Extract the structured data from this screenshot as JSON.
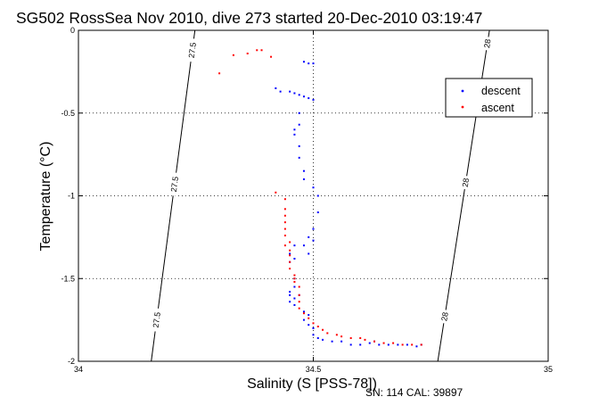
{
  "chart_data": {
    "type": "scatter",
    "title": "SG502 RossSea Nov 2010, dive 273 started 20-Dec-2010 03:19:47",
    "xlabel": "Salinity (S [PSS-78])",
    "ylabel": "Temperature (°C)",
    "footer": "SN: 114  CAL: 39897",
    "xlim": [
      34,
      35
    ],
    "ylim": [
      -2,
      0
    ],
    "xticks": [
      34,
      34.5,
      35
    ],
    "xtick_labels": [
      "34",
      "34.5",
      "35"
    ],
    "yticks": [
      0,
      -0.5,
      -1,
      -1.5,
      -2
    ],
    "ytick_labels": [
      "0",
      "-0.5",
      "-1",
      "-1.5",
      "-2"
    ],
    "grid": true,
    "legend_position": "top-right",
    "series": [
      {
        "name": "descent",
        "color": "#0000ff",
        "points": [
          [
            34.48,
            -0.19
          ],
          [
            34.49,
            -0.2
          ],
          [
            34.5,
            -0.2
          ],
          [
            34.42,
            -0.35
          ],
          [
            34.43,
            -0.37
          ],
          [
            34.45,
            -0.37
          ],
          [
            34.46,
            -0.38
          ],
          [
            34.47,
            -0.39
          ],
          [
            34.48,
            -0.4
          ],
          [
            34.49,
            -0.41
          ],
          [
            34.5,
            -0.42
          ],
          [
            34.47,
            -0.5
          ],
          [
            34.47,
            -0.57
          ],
          [
            34.46,
            -0.6
          ],
          [
            34.46,
            -0.63
          ],
          [
            34.47,
            -0.7
          ],
          [
            34.47,
            -0.77
          ],
          [
            34.48,
            -0.85
          ],
          [
            34.48,
            -0.9
          ],
          [
            34.5,
            -0.95
          ],
          [
            34.51,
            -1.0
          ],
          [
            34.51,
            -1.1
          ],
          [
            34.5,
            -1.2
          ],
          [
            34.49,
            -1.25
          ],
          [
            34.5,
            -1.27
          ],
          [
            34.48,
            -1.3
          ],
          [
            34.49,
            -1.35
          ],
          [
            34.46,
            -1.3
          ],
          [
            34.45,
            -1.35
          ],
          [
            34.46,
            -1.38
          ],
          [
            34.45,
            -1.4
          ],
          [
            34.46,
            -1.5
          ],
          [
            34.46,
            -1.55
          ],
          [
            34.45,
            -1.58
          ],
          [
            34.45,
            -1.6
          ],
          [
            34.46,
            -1.62
          ],
          [
            34.45,
            -1.64
          ],
          [
            34.46,
            -1.66
          ],
          [
            34.47,
            -1.6
          ],
          [
            34.48,
            -1.7
          ],
          [
            34.49,
            -1.72
          ],
          [
            34.48,
            -1.75
          ],
          [
            34.49,
            -1.78
          ],
          [
            34.5,
            -1.8
          ],
          [
            34.5,
            -1.84
          ],
          [
            34.51,
            -1.86
          ],
          [
            34.52,
            -1.87
          ],
          [
            34.54,
            -1.88
          ],
          [
            34.56,
            -1.88
          ],
          [
            34.58,
            -1.9
          ],
          [
            34.6,
            -1.9
          ],
          [
            34.62,
            -1.89
          ],
          [
            34.63,
            -1.88
          ],
          [
            34.64,
            -1.9
          ],
          [
            34.66,
            -1.9
          ],
          [
            34.68,
            -1.9
          ],
          [
            34.7,
            -1.9
          ],
          [
            34.72,
            -1.91
          ],
          [
            34.73,
            -1.9
          ]
        ]
      },
      {
        "name": "ascent",
        "color": "#ff0000",
        "points": [
          [
            34.3,
            -0.26
          ],
          [
            34.33,
            -0.15
          ],
          [
            34.36,
            -0.14
          ],
          [
            34.38,
            -0.12
          ],
          [
            34.39,
            -0.12
          ],
          [
            34.41,
            -0.16
          ],
          [
            34.42,
            -0.98
          ],
          [
            34.44,
            -1.02
          ],
          [
            34.44,
            -1.08
          ],
          [
            34.44,
            -1.12
          ],
          [
            34.44,
            -1.16
          ],
          [
            34.44,
            -1.2
          ],
          [
            34.44,
            -1.24
          ],
          [
            34.45,
            -1.28
          ],
          [
            34.44,
            -1.3
          ],
          [
            34.45,
            -1.33
          ],
          [
            34.45,
            -1.36
          ],
          [
            34.45,
            -1.4
          ],
          [
            34.45,
            -1.44
          ],
          [
            34.46,
            -1.48
          ],
          [
            34.46,
            -1.5
          ],
          [
            34.46,
            -1.52
          ],
          [
            34.47,
            -1.55
          ],
          [
            34.47,
            -1.6
          ],
          [
            34.47,
            -1.64
          ],
          [
            34.47,
            -1.68
          ],
          [
            34.48,
            -1.71
          ],
          [
            34.49,
            -1.74
          ],
          [
            34.5,
            -1.77
          ],
          [
            34.51,
            -1.79
          ],
          [
            34.52,
            -1.81
          ],
          [
            34.53,
            -1.83
          ],
          [
            34.55,
            -1.84
          ],
          [
            34.56,
            -1.85
          ],
          [
            34.58,
            -1.86
          ],
          [
            34.6,
            -1.86
          ],
          [
            34.61,
            -1.87
          ],
          [
            34.63,
            -1.88
          ],
          [
            34.65,
            -1.89
          ],
          [
            34.67,
            -1.89
          ],
          [
            34.69,
            -1.9
          ],
          [
            34.71,
            -1.9
          ],
          [
            34.73,
            -1.9
          ]
        ]
      }
    ],
    "isopycnals": [
      {
        "id": "iso-27-5",
        "line": [
          [
            34.155,
            -2
          ],
          [
            34.248,
            0
          ]
        ],
        "labels": [
          "27.5",
          "27.5",
          "27.5"
        ],
        "label_t": [
          -1.75,
          -0.93,
          -0.12
        ]
      },
      {
        "id": "iso-28",
        "line": [
          [
            34.765,
            -2
          ],
          [
            34.875,
            0
          ]
        ],
        "labels": [
          "28",
          "28",
          "28"
        ],
        "label_t": [
          -1.73,
          -0.92,
          -0.08
        ]
      }
    ]
  }
}
